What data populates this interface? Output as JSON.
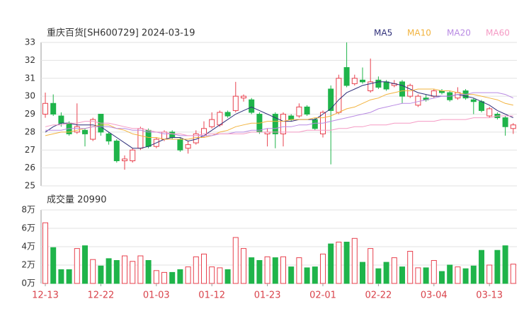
{
  "chart_data": [
    {
      "type": "candlestick",
      "title": "重庆百货[SH600729] 2024-03-19",
      "up_color": "#e8414e",
      "down_color": "#1fb44a",
      "open": [
        29.0,
        29.6,
        28.9,
        28.5,
        28.0,
        28.1,
        27.6,
        29.0,
        27.9,
        27.5,
        26.4,
        26.4,
        27.1,
        28.1,
        27.2,
        27.6,
        28.0,
        27.6,
        27.1,
        27.4,
        27.8,
        28.3,
        28.4,
        29.1,
        29.2,
        29.9,
        29.8,
        29.0,
        27.9,
        29.0,
        27.9,
        28.9,
        28.9,
        29.4,
        28.7,
        27.9,
        30.4,
        29.1,
        31.6,
        30.7,
        30.9,
        30.3,
        30.9,
        30.8,
        30.6,
        30.8,
        30.0,
        29.5,
        29.9,
        30.0,
        30.3,
        30.2,
        29.9,
        30.3,
        29.8,
        29.7,
        28.9,
        29.0,
        28.8,
        28.2
      ],
      "high": [
        30.2,
        30.1,
        29.1,
        28.6,
        29.6,
        28.2,
        28.8,
        29.0,
        28.0,
        27.6,
        26.7,
        27.1,
        28.3,
        28.2,
        27.7,
        28.1,
        28.1,
        27.7,
        27.5,
        28.1,
        28.6,
        29.1,
        29.2,
        29.2,
        30.8,
        30.1,
        29.9,
        29.1,
        28.2,
        29.1,
        29.1,
        29.0,
        29.6,
        29.5,
        28.8,
        29.2,
        30.6,
        31.2,
        33.0,
        31.2,
        31.6,
        32.1,
        31.1,
        30.9,
        30.9,
        30.9,
        30.7,
        30.1,
        30.1,
        30.4,
        30.4,
        30.3,
        30.5,
        30.4,
        29.9,
        29.8,
        29.4,
        29.1,
        28.9,
        28.5
      ],
      "low": [
        28.8,
        28.9,
        28.3,
        27.8,
        27.9,
        27.2,
        27.5,
        27.8,
        27.3,
        26.3,
        25.9,
        26.3,
        27.0,
        27.1,
        27.1,
        27.5,
        27.6,
        26.9,
        26.8,
        27.3,
        27.7,
        28.2,
        28.3,
        28.8,
        29.1,
        29.7,
        29.0,
        27.9,
        27.2,
        27.1,
        27.2,
        28.6,
        28.8,
        28.9,
        28.1,
        27.7,
        26.2,
        29.0,
        30.5,
        30.6,
        30.7,
        30.2,
        30.4,
        30.3,
        30.5,
        29.6,
        29.9,
        29.4,
        29.7,
        29.9,
        30.1,
        29.7,
        29.8,
        29.8,
        29.0,
        29.1,
        28.8,
        28.7,
        27.8,
        27.9
      ],
      "close": [
        29.6,
        29.0,
        28.5,
        27.9,
        28.3,
        27.9,
        28.7,
        28.0,
        27.5,
        26.4,
        26.5,
        27.0,
        28.2,
        27.2,
        27.6,
        28.0,
        27.7,
        27.0,
        27.3,
        27.9,
        28.2,
        28.7,
        29.1,
        28.9,
        30.0,
        30.0,
        29.1,
        28.0,
        28.0,
        27.9,
        29.0,
        28.7,
        29.4,
        29.0,
        28.2,
        29.1,
        29.2,
        31.0,
        30.6,
        31.0,
        30.8,
        30.8,
        30.5,
        30.4,
        30.7,
        30.0,
        30.6,
        30.0,
        29.8,
        30.3,
        30.2,
        29.8,
        30.2,
        29.9,
        29.7,
        29.2,
        29.3,
        28.8,
        28.3,
        28.4
      ],
      "series": [
        {
          "name": "MA5",
          "color": "#2f2f7a",
          "values": [
            28.0,
            28.3,
            28.5,
            28.5,
            28.4,
            28.4,
            28.4,
            28.3,
            28.0,
            27.7,
            27.4,
            27.1,
            27.1,
            27.2,
            27.4,
            27.6,
            27.7,
            27.7,
            27.5,
            27.6,
            27.8,
            28.1,
            28.4,
            28.7,
            29.0,
            29.2,
            29.4,
            29.2,
            29.0,
            28.8,
            28.6,
            28.6,
            28.7,
            28.7,
            28.7,
            29.0,
            29.3,
            29.8,
            30.2,
            30.4,
            30.6,
            30.7,
            30.8,
            30.8,
            30.7,
            30.6,
            30.4,
            30.2,
            30.1,
            30.0,
            30.0,
            30.0,
            30.1,
            30.0,
            29.9,
            29.7,
            29.5,
            29.2,
            29.0,
            28.8
          ]
        },
        {
          "name": "MA10",
          "color": "#f2b33d",
          "values": [
            27.8,
            27.9,
            28.0,
            28.0,
            28.1,
            28.2,
            28.3,
            28.4,
            28.4,
            28.2,
            28.1,
            27.9,
            27.8,
            27.7,
            27.7,
            27.6,
            27.6,
            27.6,
            27.6,
            27.7,
            27.7,
            27.8,
            28.0,
            28.1,
            28.3,
            28.4,
            28.5,
            28.5,
            28.6,
            28.6,
            28.6,
            28.7,
            28.7,
            28.7,
            28.8,
            28.8,
            28.9,
            29.1,
            29.3,
            29.4,
            29.6,
            29.8,
            29.9,
            30.1,
            30.2,
            30.3,
            30.3,
            30.4,
            30.4,
            30.4,
            30.3,
            30.3,
            30.2,
            30.1,
            30.1,
            30.0,
            29.9,
            29.8,
            29.6,
            29.5
          ]
        },
        {
          "name": "MA20",
          "color": "#b98ae3",
          "values": [
            28.1,
            28.1,
            28.1,
            28.2,
            28.2,
            28.2,
            28.3,
            28.3,
            28.3,
            28.2,
            28.2,
            28.1,
            28.1,
            28.0,
            28.0,
            27.9,
            27.9,
            27.8,
            27.8,
            27.8,
            27.8,
            27.8,
            27.9,
            27.9,
            28.0,
            28.0,
            28.1,
            28.1,
            28.2,
            28.2,
            28.3,
            28.3,
            28.4,
            28.4,
            28.5,
            28.5,
            28.6,
            28.7,
            28.8,
            28.9,
            29.0,
            29.1,
            29.3,
            29.4,
            29.5,
            29.6,
            29.6,
            29.7,
            29.8,
            29.9,
            30.0,
            30.0,
            30.1,
            30.1,
            30.2,
            30.2,
            30.2,
            30.2,
            30.1,
            29.9
          ]
        },
        {
          "name": "MA60",
          "color": "#f59ac4",
          "values": [
            28.3,
            28.4,
            28.4,
            28.5,
            28.5,
            28.6,
            28.6,
            28.5,
            28.5,
            28.4,
            28.3,
            28.2,
            28.2,
            28.1,
            28.0,
            28.0,
            27.9,
            27.9,
            27.8,
            27.8,
            27.9,
            27.9,
            27.9,
            27.9,
            27.9,
            27.9,
            28.0,
            28.0,
            28.0,
            28.0,
            28.0,
            28.0,
            28.0,
            28.1,
            28.1,
            28.1,
            28.1,
            28.2,
            28.2,
            28.3,
            28.3,
            28.4,
            28.4,
            28.4,
            28.5,
            28.5,
            28.5,
            28.6,
            28.6,
            28.6,
            28.7,
            28.7,
            28.7,
            28.7,
            28.8,
            28.8,
            28.8,
            28.9,
            28.9,
            28.9
          ]
        }
      ],
      "ylim": [
        25,
        33
      ],
      "yticks": [
        25,
        26,
        27,
        28,
        29,
        30,
        31,
        32,
        33
      ],
      "grid": true
    },
    {
      "type": "bar",
      "title": "成交量 20990",
      "categories": [
        "12-13",
        null,
        null,
        null,
        null,
        null,
        null,
        "12-22",
        null,
        null,
        null,
        null,
        null,
        null,
        "01-03",
        null,
        null,
        null,
        null,
        null,
        null,
        "01-12",
        null,
        null,
        null,
        null,
        null,
        null,
        "01-23",
        null,
        null,
        null,
        null,
        null,
        null,
        "02-01",
        null,
        null,
        null,
        null,
        null,
        null,
        "02-22",
        null,
        null,
        null,
        null,
        null,
        null,
        "03-04",
        null,
        null,
        null,
        null,
        null,
        null,
        "03-13",
        null,
        null,
        null
      ],
      "values": [
        6.6,
        3.9,
        1.5,
        1.5,
        3.8,
        4.1,
        2.6,
        1.9,
        2.7,
        2.5,
        3.0,
        2.4,
        3.0,
        2.5,
        1.4,
        1.2,
        1.2,
        1.5,
        1.8,
        2.9,
        3.2,
        1.8,
        1.7,
        1.5,
        5.0,
        3.8,
        2.8,
        2.5,
        2.9,
        2.8,
        2.9,
        1.8,
        2.8,
        1.7,
        1.8,
        3.2,
        4.3,
        4.5,
        4.5,
        4.9,
        2.3,
        3.8,
        1.6,
        2.3,
        2.8,
        1.8,
        3.5,
        1.7,
        1.7,
        2.5,
        1.3,
        2.0,
        1.8,
        1.6,
        1.9,
        3.6,
        2.0,
        3.6,
        4.1,
        2.1
      ],
      "ylim": [
        0,
        8
      ],
      "yticks": [
        {
          "value": 0,
          "label": "0万"
        },
        {
          "value": 2,
          "label": "2万"
        },
        {
          "value": 4,
          "label": "4万"
        },
        {
          "value": 6,
          "label": "6万"
        },
        {
          "value": 8,
          "label": "8万"
        }
      ],
      "grid": true
    }
  ]
}
